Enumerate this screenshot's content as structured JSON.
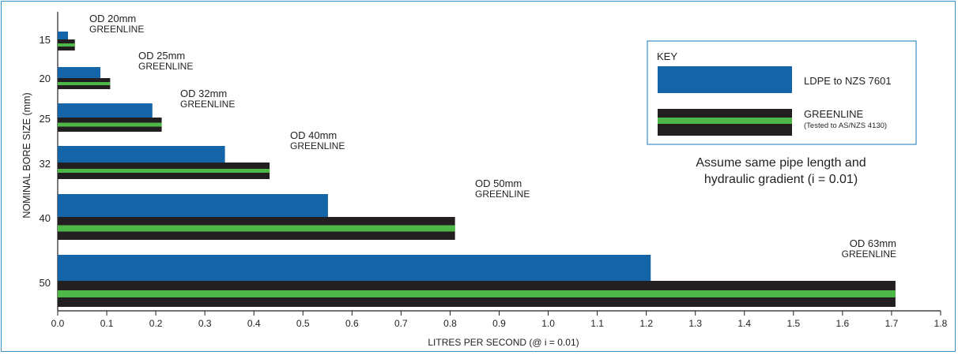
{
  "chart_data": {
    "type": "bar",
    "orientation": "horizontal",
    "ylabel": "NOMINAL BORE SIZE (mm)",
    "xlabel": "LITRES PER SECOND (@ i = 0.01)",
    "xlim": [
      0,
      1.8
    ],
    "xticks": [
      "0.0",
      "0.1",
      "0.2",
      "0.3",
      "0.4",
      "0.5",
      "0.6",
      "0.7",
      "0.8",
      "0.9",
      "1.0",
      "1.1",
      "1.2",
      "1.3",
      "1.4",
      "1.5",
      "1.6",
      "1.7",
      "1.8"
    ],
    "categories": [
      "15",
      "20",
      "25",
      "32",
      "40",
      "50"
    ],
    "series": [
      {
        "name": "LDPE to NZS 7601",
        "color": "#1464a8",
        "values": [
          0.021,
          0.087,
          0.193,
          0.341,
          0.551,
          1.209
        ]
      },
      {
        "name": "GREENLINE",
        "color": "#231f20",
        "stripe_color": "#4db848",
        "values": [
          0.035,
          0.107,
          0.212,
          0.432,
          0.81,
          1.708
        ]
      }
    ],
    "bar_labels": [
      {
        "od": "OD 20mm",
        "name": "GREENLINE"
      },
      {
        "od": "OD 25mm",
        "name": "GREENLINE"
      },
      {
        "od": "OD 32mm",
        "name": "GREENLINE"
      },
      {
        "od": "OD 40mm",
        "name": "GREENLINE"
      },
      {
        "od": "OD 50mm",
        "name": "GREENLINE"
      },
      {
        "od": "OD 63mm",
        "name": "GREENLINE"
      }
    ],
    "legend": {
      "title": "KEY",
      "placement": "top-right",
      "ldpe_label": "LDPE to NZS 7601",
      "greenline_label": "GREENLINE",
      "greenline_sublabel": "(Tested to AS/NZS 4130)"
    },
    "annotation": [
      "Assume same pipe length and",
      "hydraulic gradient (i = 0.01)"
    ],
    "grid": false
  }
}
